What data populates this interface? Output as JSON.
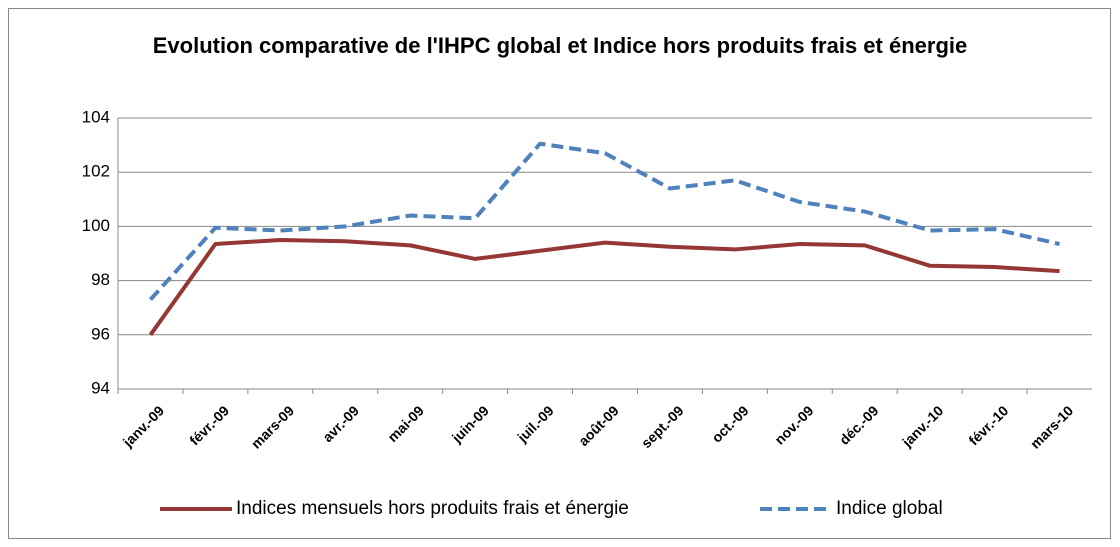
{
  "chart_data": {
    "type": "line",
    "title": "Evolution comparative de l'IHPC global et Indice hors produits frais et énergie",
    "categories": [
      "janv.-09",
      "févr.-09",
      "mars-09",
      "avr.-09",
      "mai-09",
      "juin-09",
      "juil.-09",
      "août-09",
      "sept.-09",
      "oct.-09",
      "nov.-09",
      "déc.-09",
      "janv.-10",
      "févr.-10",
      "mars-10"
    ],
    "series": [
      {
        "name": "Indices mensuels hors produits frais et énergie",
        "color": "#953735",
        "dash": false,
        "values": [
          96.0,
          99.35,
          99.5,
          99.45,
          99.3,
          98.8,
          99.1,
          99.4,
          99.25,
          99.15,
          99.35,
          99.3,
          98.55,
          98.5,
          98.35
        ]
      },
      {
        "name": "Indice global",
        "color": "#4f81bd",
        "dash": true,
        "values": [
          97.3,
          99.95,
          99.85,
          100.0,
          100.4,
          100.3,
          103.05,
          102.7,
          101.4,
          101.7,
          100.9,
          100.55,
          99.85,
          99.9,
          99.35
        ]
      }
    ],
    "ylim": [
      94,
      104
    ],
    "yticks": [
      94,
      96,
      98,
      100,
      102,
      104
    ],
    "grid": true,
    "legend": "bottom"
  }
}
